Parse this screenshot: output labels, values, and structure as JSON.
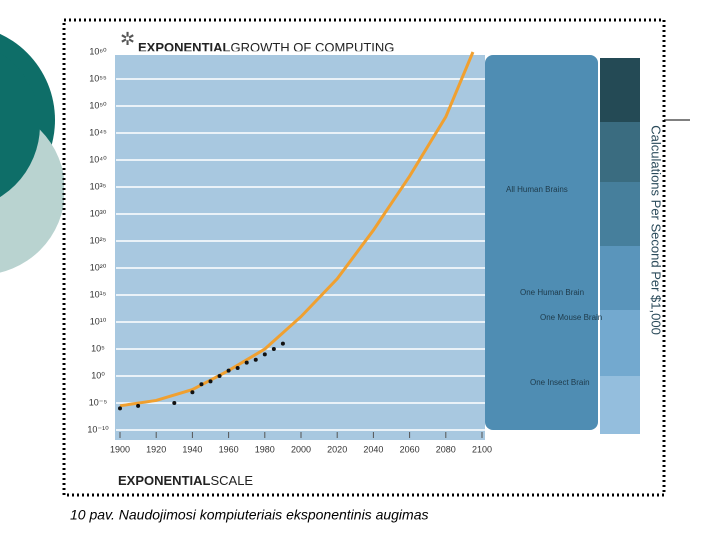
{
  "chart_data": {
    "type": "line",
    "title": {
      "emphasis": "EXPONENTIAL",
      "rest": "GROWTH OF COMPUTING"
    },
    "footer": {
      "emphasis": "EXPONENTIAL",
      "rest": "SCALE"
    },
    "y_label": "Calculations Per Second Per $1,000",
    "annotations": [
      "All Human Brains",
      "One Human Brain",
      "One Mouse Brain",
      "One Insect Brain"
    ],
    "log_y": true,
    "grid": true,
    "xlim": [
      1900,
      2100
    ],
    "xticks": [
      1900,
      1920,
      1940,
      1960,
      1980,
      2000,
      2020,
      2040,
      2060,
      2080,
      2100
    ],
    "ylim": [
      1e-10,
      1e+60
    ],
    "yticks": [
      {
        "value": 1e+60,
        "label": "10⁶⁰"
      },
      {
        "value": 1e+55,
        "label": "10⁵⁵"
      },
      {
        "value": 1e+50,
        "label": "10⁵⁰"
      },
      {
        "value": 1e+45,
        "label": "10⁴⁵"
      },
      {
        "value": 1e+40,
        "label": "10⁴⁰"
      },
      {
        "value": 1e+35,
        "label": "10³⁵"
      },
      {
        "value": 1e+30,
        "label": "10³⁰"
      },
      {
        "value": 1e+25,
        "label": "10²⁵"
      },
      {
        "value": 1e+20,
        "label": "10²⁰"
      },
      {
        "value": 1000000000000000.0,
        "label": "10¹⁵"
      },
      {
        "value": 10000000000.0,
        "label": "10¹⁰"
      },
      {
        "value": 100000.0,
        "label": "10⁵"
      },
      {
        "value": 1,
        "label": "10⁰"
      },
      {
        "value": 1e-05,
        "label": "10⁻⁵"
      },
      {
        "value": 1e-10,
        "label": "10⁻¹⁰"
      }
    ],
    "series": [
      {
        "kind": "line",
        "color": "#f0a030",
        "x": [
          1900,
          1920,
          1940,
          1960,
          1980,
          2000,
          2020,
          2040,
          2060,
          2080,
          2095
        ],
        "values": [
          3e-06,
          3e-05,
          0.003,
          10,
          100000.0,
          100000000000.0,
          1e+18,
          1e+27,
          1e+37,
          1e+48,
          1e+60
        ]
      },
      {
        "kind": "scatter",
        "color": "#111111",
        "x": [
          1900,
          1910,
          1930,
          1940,
          1945,
          1950,
          1955,
          1960,
          1965,
          1970,
          1975,
          1980,
          1985,
          1990
        ],
        "values": [
          1e-06,
          3e-06,
          1e-05,
          0.001,
          0.03,
          0.1,
          1,
          10,
          30,
          300,
          1000,
          10000.0,
          100000.0,
          1000000.0
        ]
      }
    ]
  },
  "caption": "10 pav. Naudojimosi kompiuteriais eksponentinis augimas"
}
